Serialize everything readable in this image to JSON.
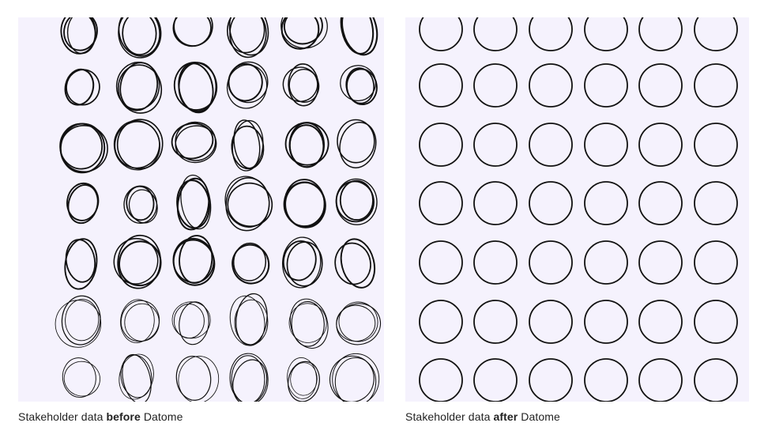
{
  "colors": {
    "panel_background": "#f5f2fd",
    "stroke": "#111111",
    "caption_text": "#222222"
  },
  "before_panel": {
    "caption": {
      "prefix": "Stakeholder data ",
      "emphasis": "before",
      "suffix": " Datome"
    },
    "grid": {
      "rows": 7,
      "columns": 6
    },
    "style": "hand-drawn scribbled ovals"
  },
  "after_panel": {
    "caption": {
      "prefix": "Stakeholder data ",
      "emphasis": "after",
      "suffix": " Datome"
    },
    "grid": {
      "rows": 7,
      "columns": 6
    },
    "style": "clean uniform circles"
  }
}
